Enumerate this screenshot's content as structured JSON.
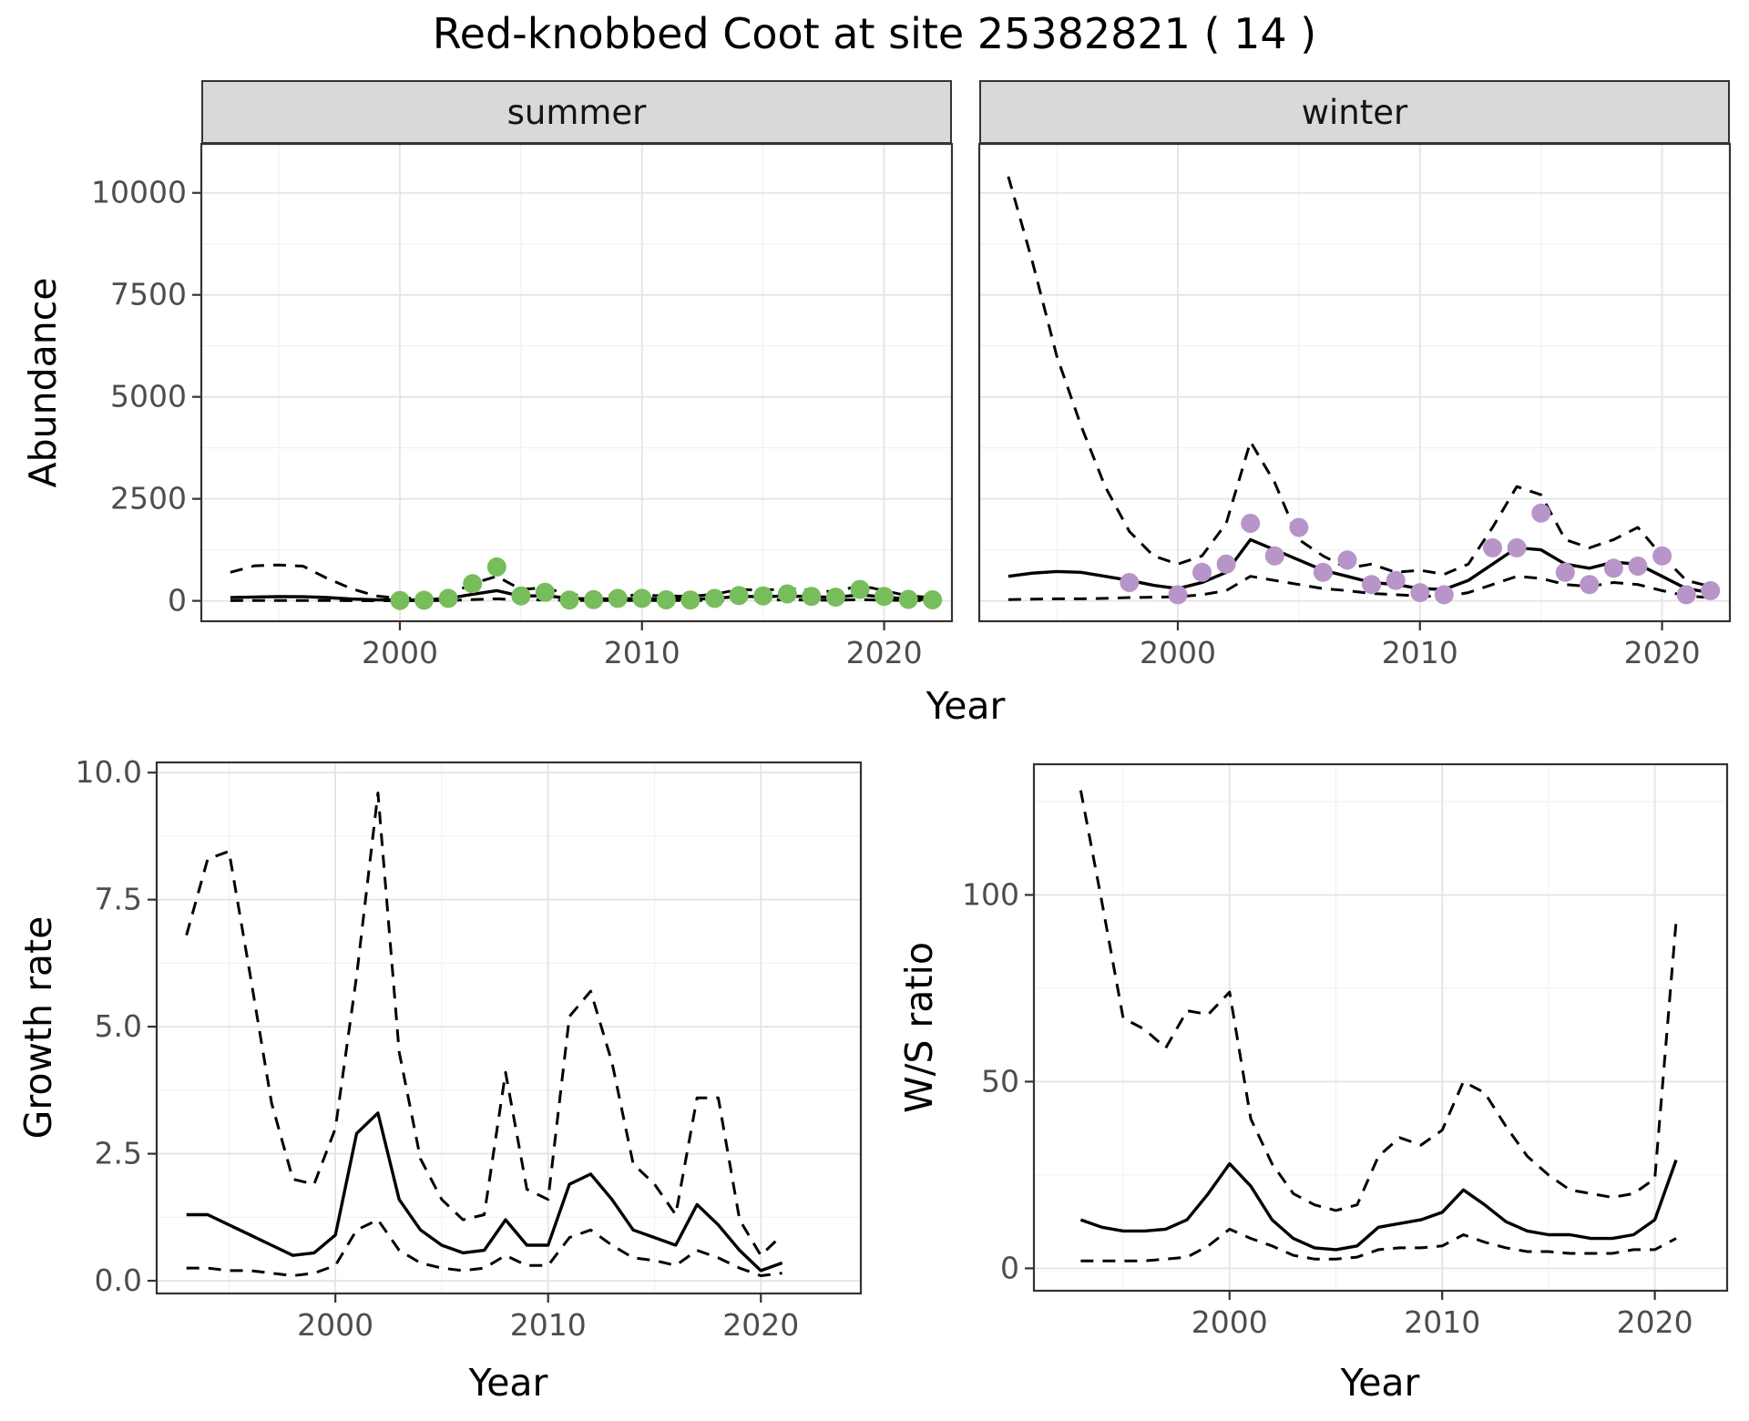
{
  "title": "Red-knobbed Coot at site 25382821 ( 14 )",
  "colors": {
    "summer_points": "#77bd5c",
    "winter_points": "#b795c8",
    "line": "#000000",
    "strip_bg": "#d9d9d9",
    "panel_border": "#333333",
    "tick": "#333333",
    "grid_major": "#e4e4e4",
    "grid_minor": "#f1f1f1",
    "axis_text": "#4d4d4d"
  },
  "chart_data": [
    {
      "id": "abundance-summer",
      "type": "line",
      "facet_label": "summer",
      "title": "",
      "xlabel": "Year",
      "ylabel": "Abundance",
      "xlim": [
        1991.8,
        2022.8
      ],
      "ylim": [
        -500,
        11200
      ],
      "xticks": [
        2000,
        2010,
        2020
      ],
      "xtick_labels": [
        "2000",
        "2010",
        "2020"
      ],
      "yticks": [
        0,
        2500,
        5000,
        7500,
        10000
      ],
      "ytick_labels": [
        "0",
        "2500",
        "5000",
        "7500",
        "10000"
      ],
      "grid": "major+minor",
      "legend": "none",
      "x": [
        1993,
        1994,
        1995,
        1996,
        1997,
        1998,
        1999,
        2000,
        2001,
        2002,
        2003,
        2004,
        2005,
        2006,
        2007,
        2008,
        2009,
        2010,
        2011,
        2012,
        2013,
        2014,
        2015,
        2016,
        2017,
        2018,
        2019,
        2020,
        2021,
        2022
      ],
      "series": [
        {
          "name": "upper-ci",
          "style": "dashed",
          "values": [
            700,
            860,
            880,
            850,
            550,
            300,
            120,
            60,
            70,
            150,
            420,
            600,
            280,
            320,
            150,
            120,
            130,
            140,
            120,
            110,
            160,
            280,
            260,
            300,
            260,
            220,
            380,
            250,
            120,
            80
          ]
        },
        {
          "name": "estimate",
          "style": "solid",
          "values": [
            80,
            95,
            105,
            100,
            80,
            45,
            25,
            20,
            25,
            60,
            160,
            250,
            115,
            130,
            60,
            45,
            50,
            55,
            45,
            40,
            60,
            110,
            100,
            120,
            100,
            85,
            150,
            95,
            45,
            30
          ]
        },
        {
          "name": "lower-ci",
          "style": "dashed",
          "values": [
            5,
            8,
            10,
            10,
            8,
            5,
            3,
            2,
            3,
            8,
            30,
            50,
            20,
            25,
            10,
            8,
            8,
            10,
            8,
            7,
            10,
            20,
            18,
            25,
            18,
            15,
            30,
            15,
            7,
            5
          ]
        }
      ],
      "points": {
        "name": "observed-counts",
        "color_key": "summer_points",
        "x": [
          2000,
          2001,
          2002,
          2003,
          2004,
          2005,
          2006,
          2007,
          2008,
          2009,
          2010,
          2011,
          2012,
          2013,
          2014,
          2015,
          2016,
          2017,
          2018,
          2019,
          2020,
          2021,
          2022
        ],
        "y": [
          10,
          15,
          60,
          420,
          830,
          120,
          210,
          20,
          30,
          60,
          60,
          25,
          20,
          60,
          130,
          120,
          170,
          110,
          90,
          280,
          110,
          35,
          25
        ]
      }
    },
    {
      "id": "abundance-winter",
      "type": "line",
      "facet_label": "winter",
      "title": "",
      "xlabel": "Year",
      "ylabel": "Abundance",
      "xlim": [
        1991.8,
        2022.8
      ],
      "ylim": [
        -500,
        11200
      ],
      "xticks": [
        2000,
        2010,
        2020
      ],
      "xtick_labels": [
        "2000",
        "2010",
        "2020"
      ],
      "yticks": [
        0,
        2500,
        5000,
        7500,
        10000
      ],
      "ytick_labels": [
        "0",
        "2500",
        "5000",
        "7500",
        "10000"
      ],
      "grid": "major+minor",
      "legend": "none",
      "x": [
        1993,
        1994,
        1995,
        1996,
        1997,
        1998,
        1999,
        2000,
        2001,
        2002,
        2003,
        2004,
        2005,
        2006,
        2007,
        2008,
        2009,
        2010,
        2011,
        2012,
        2013,
        2014,
        2015,
        2016,
        2017,
        2018,
        2019,
        2020,
        2021,
        2022
      ],
      "series": [
        {
          "name": "upper-ci",
          "style": "dashed",
          "values": [
            10400,
            8300,
            6000,
            4300,
            2800,
            1700,
            1100,
            900,
            1100,
            1900,
            3900,
            2900,
            1500,
            1100,
            800,
            900,
            700,
            750,
            650,
            900,
            1800,
            2800,
            2600,
            1500,
            1300,
            1500,
            1800,
            1100,
            500,
            350
          ]
        },
        {
          "name": "estimate",
          "style": "solid",
          "values": [
            600,
            680,
            720,
            700,
            600,
            500,
            380,
            300,
            450,
            700,
            1500,
            1250,
            1000,
            750,
            600,
            450,
            400,
            300,
            280,
            500,
            900,
            1300,
            1250,
            900,
            800,
            950,
            900,
            600,
            300,
            200
          ]
        },
        {
          "name": "lower-ci",
          "style": "dashed",
          "values": [
            30,
            40,
            50,
            50,
            60,
            80,
            90,
            100,
            150,
            250,
            600,
            500,
            400,
            300,
            250,
            180,
            150,
            120,
            100,
            200,
            400,
            600,
            550,
            400,
            350,
            450,
            400,
            250,
            120,
            80
          ]
        }
      ],
      "points": {
        "name": "observed-counts",
        "color_key": "winter_points",
        "x": [
          1998,
          2000,
          2001,
          2002,
          2003,
          2004,
          2005,
          2006,
          2007,
          2008,
          2009,
          2010,
          2011,
          2013,
          2014,
          2015,
          2016,
          2017,
          2018,
          2019,
          2020,
          2021,
          2022
        ],
        "y": [
          450,
          150,
          700,
          900,
          1900,
          1100,
          1800,
          700,
          1000,
          400,
          500,
          200,
          150,
          1300,
          1300,
          2150,
          700,
          400,
          800,
          850,
          1100,
          150,
          250
        ]
      }
    },
    {
      "id": "growth-rate",
      "type": "line",
      "facet_label": "",
      "title": "",
      "xlabel": "Year",
      "ylabel": "Growth rate",
      "xlim": [
        1991.6,
        2024.7
      ],
      "ylim": [
        -0.25,
        10.2
      ],
      "xticks": [
        2000,
        2010,
        2020
      ],
      "xtick_labels": [
        "2000",
        "2010",
        "2020"
      ],
      "yticks": [
        0,
        2.5,
        5,
        7.5,
        10
      ],
      "ytick_labels": [
        "0.0",
        "2.5",
        "5.0",
        "7.5",
        "10.0"
      ],
      "grid": "major+minor",
      "legend": "none",
      "x": [
        1993,
        1994,
        1995,
        1996,
        1997,
        1998,
        1999,
        2000,
        2001,
        2002,
        2003,
        2004,
        2005,
        2006,
        2007,
        2008,
        2009,
        2010,
        2011,
        2012,
        2013,
        2014,
        2015,
        2016,
        2017,
        2018,
        2019,
        2020,
        2021
      ],
      "series": [
        {
          "name": "upper-ci",
          "style": "dashed",
          "values": [
            6.8,
            8.3,
            8.45,
            6.0,
            3.5,
            2.0,
            1.9,
            3.0,
            6.0,
            9.6,
            4.5,
            2.4,
            1.6,
            1.2,
            1.3,
            4.1,
            1.8,
            1.6,
            5.2,
            5.7,
            4.3,
            2.3,
            1.9,
            1.3,
            3.6,
            3.6,
            1.2,
            0.5,
            0.9
          ]
        },
        {
          "name": "estimate",
          "style": "solid",
          "values": [
            1.3,
            1.3,
            1.1,
            0.9,
            0.7,
            0.5,
            0.55,
            0.9,
            2.9,
            3.3,
            1.6,
            1.0,
            0.7,
            0.55,
            0.6,
            1.2,
            0.7,
            0.7,
            1.9,
            2.1,
            1.6,
            1.0,
            0.85,
            0.7,
            1.5,
            1.1,
            0.6,
            0.2,
            0.35
          ]
        },
        {
          "name": "lower-ci",
          "style": "dashed",
          "values": [
            0.25,
            0.25,
            0.2,
            0.2,
            0.15,
            0.1,
            0.15,
            0.3,
            1.0,
            1.2,
            0.6,
            0.35,
            0.25,
            0.2,
            0.25,
            0.5,
            0.3,
            0.3,
            0.85,
            1.0,
            0.7,
            0.45,
            0.4,
            0.3,
            0.6,
            0.45,
            0.25,
            0.1,
            0.15
          ]
        }
      ]
    },
    {
      "id": "ws-ratio",
      "type": "line",
      "facet_label": "",
      "title": "",
      "xlabel": "Year",
      "ylabel": "W/S ratio",
      "xlim": [
        1990.8,
        2023.4
      ],
      "ylim": [
        -6,
        135
      ],
      "xticks": [
        2000,
        2010,
        2020
      ],
      "xtick_labels": [
        "2000",
        "2010",
        "2020"
      ],
      "yticks": [
        0,
        50,
        100
      ],
      "ytick_labels": [
        "0",
        "50",
        "100"
      ],
      "grid": "major+minor",
      "legend": "none",
      "x": [
        1993,
        1994,
        1995,
        1996,
        1997,
        1998,
        1999,
        2000,
        2001,
        2002,
        2003,
        2004,
        2005,
        2006,
        2007,
        2008,
        2009,
        2010,
        2011,
        2012,
        2013,
        2014,
        2015,
        2016,
        2017,
        2018,
        2019,
        2020,
        2021
      ],
      "series": [
        {
          "name": "upper-ci",
          "style": "dashed",
          "values": [
            128,
            98,
            67,
            64,
            59,
            69,
            68,
            74,
            40,
            28,
            20,
            17,
            15.5,
            17,
            30,
            35,
            33,
            37,
            50,
            47,
            38,
            30,
            25,
            21,
            20,
            19,
            20,
            24,
            93
          ]
        },
        {
          "name": "estimate",
          "style": "solid",
          "values": [
            13,
            11,
            10,
            10,
            10.5,
            13,
            20,
            28,
            22,
            13,
            8,
            5.5,
            5,
            6,
            11,
            12,
            13,
            15,
            21,
            17,
            12.5,
            10,
            9,
            9,
            8,
            8,
            9,
            13,
            29
          ]
        },
        {
          "name": "lower-ci",
          "style": "dashed",
          "values": [
            2,
            2,
            2,
            2,
            2.5,
            3,
            6,
            10.5,
            8,
            6,
            3.5,
            2.5,
            2.5,
            3,
            5,
            5.5,
            5.5,
            6,
            9,
            7,
            5.5,
            4.5,
            4.5,
            4,
            4,
            4,
            5,
            5,
            8
          ]
        }
      ]
    }
  ]
}
